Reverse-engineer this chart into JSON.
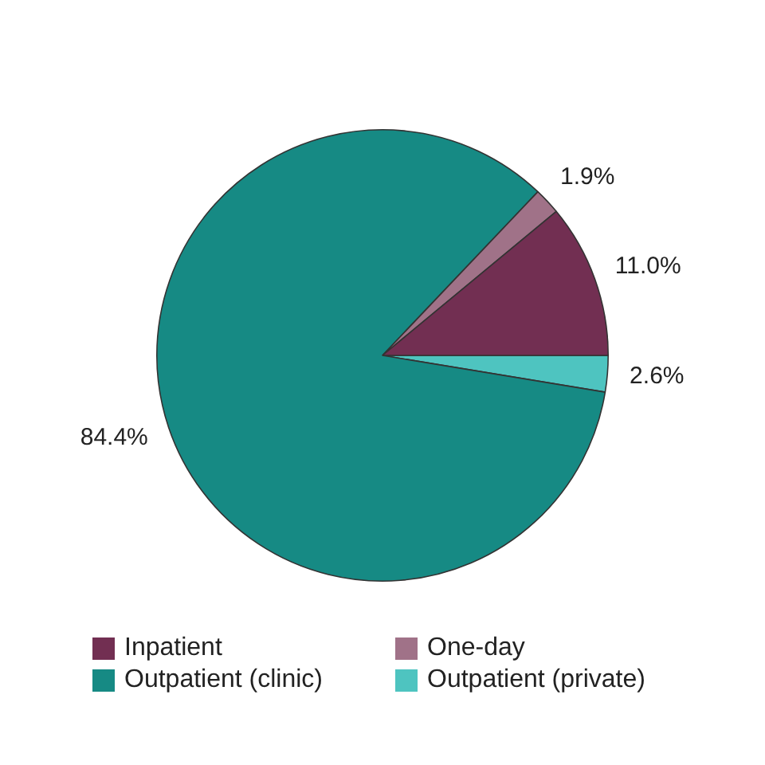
{
  "chart_data": {
    "type": "pie",
    "categories": [
      "Inpatient",
      "One-day",
      "Outpatient (clinic)",
      "Outpatient (private)"
    ],
    "values": [
      11.0,
      1.9,
      84.4,
      2.6
    ],
    "colors": [
      "#722f52",
      "#a07288",
      "#168a84",
      "#4ec4c0"
    ],
    "value_labels": [
      "11.0%",
      "1.9%",
      "84.4%",
      "2.6%"
    ],
    "legend": "bottom"
  }
}
